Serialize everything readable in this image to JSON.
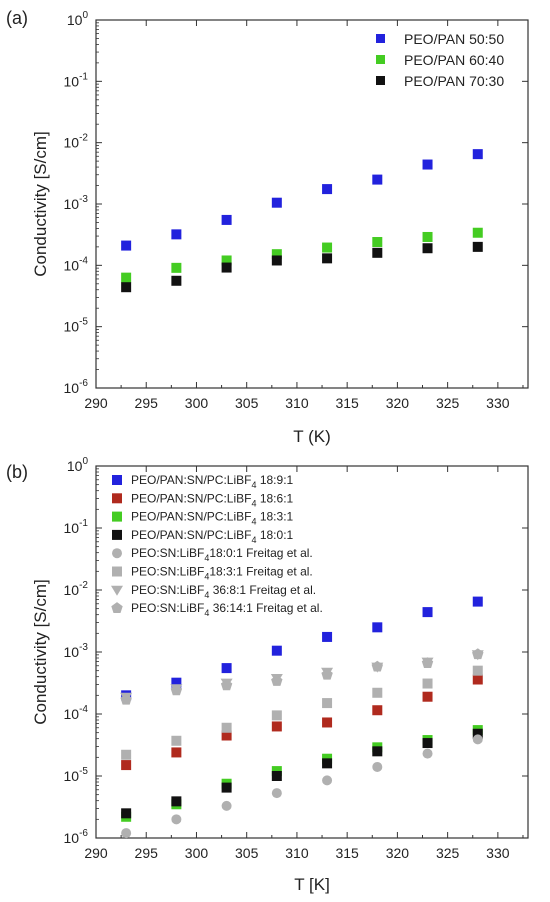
{
  "chart_data": [
    {
      "type": "scatter",
      "panel_label": "(a)",
      "xlabel": "T (K)",
      "ylabel": "Conductivity [S/cm]",
      "xlim": [
        290,
        333
      ],
      "ylim": [
        1e-06,
        1
      ],
      "yscale": "log",
      "xticks": [
        "290",
        "295",
        "300",
        "305",
        "310",
        "315",
        "320",
        "325",
        "330"
      ],
      "yticks": [
        {
          "base": "10",
          "exp": "-6"
        },
        {
          "base": "10",
          "exp": "-5"
        },
        {
          "base": "10",
          "exp": "-4"
        },
        {
          "base": "10",
          "exp": "-3"
        },
        {
          "base": "10",
          "exp": "-2"
        },
        {
          "base": "10",
          "exp": "-1"
        },
        {
          "base": "10",
          "exp": "0"
        }
      ],
      "legend_position": "top-right",
      "grid": false,
      "series": [
        {
          "name": "PEO/PAN 50:50",
          "color": "#2222dd",
          "marker": "square",
          "x": [
            293,
            298,
            303,
            308,
            313,
            318,
            323,
            328
          ],
          "y": [
            0.00021,
            0.00032,
            0.00055,
            0.00105,
            0.00175,
            0.0025,
            0.0044,
            0.0065
          ]
        },
        {
          "name": "PEO/PAN 60:40",
          "color": "#44cc22",
          "marker": "square",
          "x": [
            293,
            298,
            303,
            308,
            313,
            318,
            323,
            328
          ],
          "y": [
            6.3e-05,
            9.1e-05,
            0.00012,
            0.000152,
            0.000195,
            0.00024,
            0.00029,
            0.00034
          ]
        },
        {
          "name": "PEO/PAN 70:30",
          "color": "#111111",
          "marker": "square",
          "x": [
            293,
            298,
            303,
            308,
            313,
            318,
            323,
            328
          ],
          "y": [
            4.4e-05,
            5.6e-05,
            9.2e-05,
            0.00012,
            0.00013,
            0.00016,
            0.00019,
            0.0002
          ]
        }
      ]
    },
    {
      "type": "scatter",
      "panel_label": "(b)",
      "xlabel": "T [K]",
      "ylabel": "Conductivity [S/cm]",
      "xlim": [
        290,
        333
      ],
      "ylim": [
        1e-06,
        1
      ],
      "yscale": "log",
      "xticks": [
        "290",
        "295",
        "300",
        "305",
        "310",
        "315",
        "320",
        "325",
        "330"
      ],
      "yticks": [
        {
          "base": "10",
          "exp": "-6"
        },
        {
          "base": "10",
          "exp": "-5"
        },
        {
          "base": "10",
          "exp": "-4"
        },
        {
          "base": "10",
          "exp": "-3"
        },
        {
          "base": "10",
          "exp": "-2"
        },
        {
          "base": "10",
          "exp": "-1"
        },
        {
          "base": "10",
          "exp": "0"
        }
      ],
      "legend_position": "top-left",
      "grid": false,
      "series": [
        {
          "name": "PEO/PAN:SN/PC:LiBF",
          "sub": "4",
          "suffix": " 18:9:1",
          "color": "#2222dd",
          "marker": "square",
          "x": [
            293,
            298,
            303,
            308,
            313,
            318,
            323,
            328
          ],
          "y": [
            0.0002,
            0.00032,
            0.00055,
            0.00105,
            0.00175,
            0.0025,
            0.0044,
            0.0065
          ]
        },
        {
          "name": "PEO/PAN:SN/PC:LiBF",
          "sub": "4",
          "suffix": " 18:6:1",
          "color": "#b02a1e",
          "marker": "square",
          "x": [
            293,
            298,
            303,
            308,
            313,
            318,
            323,
            328
          ],
          "y": [
            1.5e-05,
            2.4e-05,
            4.5e-05,
            6.3e-05,
            7.3e-05,
            0.000115,
            0.00019,
            0.00036
          ]
        },
        {
          "name": "PEO/PAN:SN/PC:LiBF",
          "sub": "4",
          "suffix": " 18:3:1",
          "color": "#44cc22",
          "marker": "square",
          "x": [
            293,
            298,
            303,
            308,
            313,
            318,
            323,
            328
          ],
          "y": [
            2.2e-06,
            3.5e-06,
            7.5e-06,
            1.2e-05,
            1.9e-05,
            2.9e-05,
            3.8e-05,
            5.5e-05
          ]
        },
        {
          "name": "PEO/PAN:SN/PC:LiBF",
          "sub": "4",
          "suffix": " 18:0:1",
          "color": "#111111",
          "marker": "square",
          "x": [
            293,
            298,
            303,
            308,
            313,
            318,
            323,
            328
          ],
          "y": [
            2.5e-06,
            3.9e-06,
            6.5e-06,
            1e-05,
            1.6e-05,
            2.5e-05,
            3.4e-05,
            4.8e-05
          ]
        },
        {
          "name": "PEO:SN:LiBF",
          "sub": "4",
          "suffix": "18:0:1 Freitag et al.",
          "color": "#b0b0b0",
          "marker": "circle",
          "x": [
            293,
            298,
            303,
            308,
            313,
            318,
            323,
            328
          ],
          "y": [
            1.2e-06,
            2e-06,
            3.3e-06,
            5.3e-06,
            8.5e-06,
            1.4e-05,
            2.3e-05,
            3.9e-05
          ]
        },
        {
          "name": "PEO:SN:LiBF",
          "sub": "4",
          "suffix": "18:3:1 Freitag et al.",
          "color": "#b0b0b0",
          "marker": "square",
          "x": [
            293,
            298,
            303,
            308,
            313,
            318,
            323,
            328
          ],
          "y": [
            2.2e-05,
            3.7e-05,
            6e-05,
            9.5e-05,
            0.00015,
            0.00022,
            0.00031,
            0.0005
          ]
        },
        {
          "name": "PEO:SN:LiBF",
          "sub": "4",
          "suffix": " 36:8:1 Freitag et al.",
          "color": "#b0b0b0",
          "marker": "triangle-down",
          "x": [
            293,
            298,
            303,
            308,
            313,
            318,
            323,
            328
          ],
          "y": [
            0.00019,
            0.00026,
            0.00032,
            0.00038,
            0.00048,
            0.00058,
            0.0007,
            0.00092
          ]
        },
        {
          "name": "PEO:SN:LiBF",
          "sub": "4",
          "suffix": " 36:14:1 Freitag et al.",
          "color": "#b0b0b0",
          "marker": "pentagon",
          "x": [
            293,
            298,
            303,
            308,
            313,
            318,
            323,
            328
          ],
          "y": [
            0.00017,
            0.00024,
            0.00029,
            0.00034,
            0.00043,
            0.00058,
            0.00066,
            0.00092
          ]
        }
      ]
    }
  ]
}
